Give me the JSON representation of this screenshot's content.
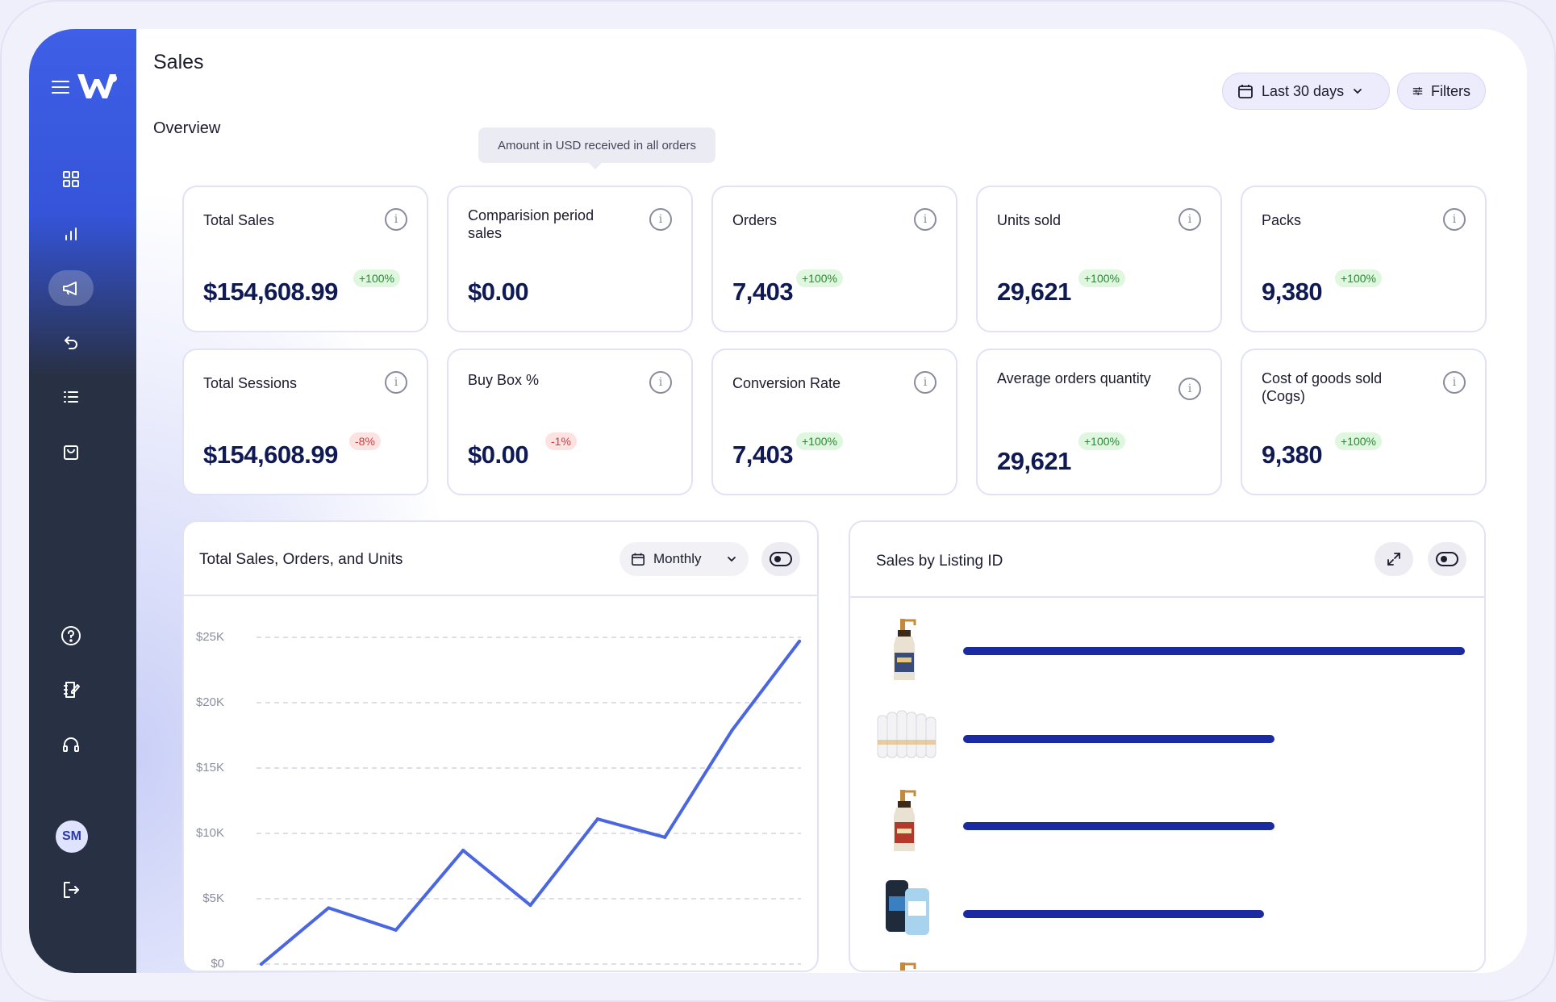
{
  "header": {
    "title": "Sales",
    "date_range_label": "Last 30 days",
    "filters_label": "Filters"
  },
  "overview": {
    "title": "Overview",
    "tooltip": "Amount in USD received in all orders",
    "cards": [
      {
        "label": "Total Sales",
        "value": "$154,608.99",
        "badge": "+100%",
        "trend": "up"
      },
      {
        "label": "Comparision period sales",
        "value": "$0.00",
        "badge": "",
        "trend": ""
      },
      {
        "label": "Orders",
        "value": "7,403",
        "badge": "+100%",
        "trend": "up"
      },
      {
        "label": "Units sold",
        "value": "29,621",
        "badge": "+100%",
        "trend": "up"
      },
      {
        "label": "Packs",
        "value": "9,380",
        "badge": "+100%",
        "trend": "up"
      },
      {
        "label": "Total Sessions",
        "value": "$154,608.99",
        "badge": "-8%",
        "trend": "down"
      },
      {
        "label": "Buy Box %",
        "value": "$0.00",
        "badge": "-1%",
        "trend": "down"
      },
      {
        "label": "Conversion Rate",
        "value": "7,403",
        "badge": "+100%",
        "trend": "up"
      },
      {
        "label": "Average orders quantity",
        "value": "29,621",
        "badge": "+100%",
        "trend": "up"
      },
      {
        "label": "Cost of goods sold (Cogs)",
        "value": "9,380",
        "badge": "+100%",
        "trend": "up"
      }
    ]
  },
  "sales_chart": {
    "title": "Total Sales, Orders, and Units",
    "period_label": "Monthly"
  },
  "listing_panel": {
    "title": "Sales by Listing ID"
  },
  "sidebar": {
    "avatar_initials": "SM",
    "items": [
      "dashboard-icon",
      "bar-chart-icon",
      "megaphone-icon",
      "return-icon",
      "list-icon",
      "shopping-bag-icon",
      "help-icon",
      "notebook-icon",
      "headset-icon",
      "logout-icon"
    ]
  },
  "colors": {
    "accent": "#3e5fe6",
    "sidebar_dark": "#283044",
    "line": "#4a66e0",
    "bar": "#1a2aa0",
    "badge_up": "#2a8a34",
    "badge_down": "#cf3d3d"
  },
  "chart_data": {
    "type": "line",
    "title": "Total Sales, Orders, and Units",
    "xlabel": "",
    "ylabel": "",
    "ylim": [
      0,
      25000
    ],
    "yticks": [
      "$0",
      "$5K",
      "$10K",
      "$15K",
      "$20K",
      "$25K"
    ],
    "ytick_values": [
      0,
      5000,
      10000,
      15000,
      20000,
      25000
    ],
    "grid": true,
    "series": [
      {
        "values": [
          0,
          4300,
          2600,
          8700,
          4500,
          11100,
          9700,
          17900,
          24700
        ]
      }
    ]
  },
  "listing_data": {
    "type": "bar",
    "values": [
      1.0,
      0.62,
      0.62,
      0.6
    ]
  }
}
